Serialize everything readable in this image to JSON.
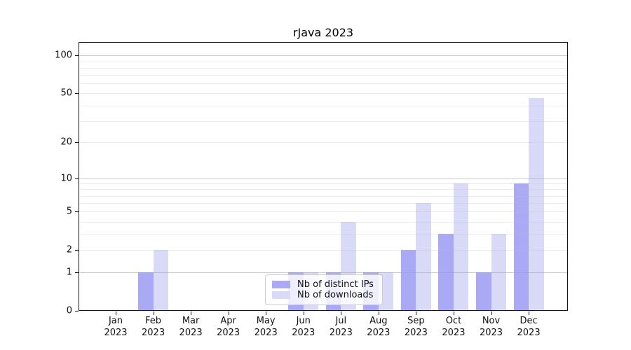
{
  "title": "rJava 2023",
  "legend": {
    "items": [
      {
        "label": "Nb of distinct IPs",
        "key": "distinct_ips"
      },
      {
        "label": "Nb of downloads",
        "key": "downloads"
      }
    ]
  },
  "x_axis": {
    "months": [
      "Jan",
      "Feb",
      "Mar",
      "Apr",
      "May",
      "Jun",
      "Jul",
      "Aug",
      "Sep",
      "Oct",
      "Nov",
      "Dec"
    ],
    "year": "2023"
  },
  "y_axis": {
    "tick_labels": [
      "0",
      "1",
      "2",
      "5",
      "10",
      "20",
      "50",
      "100"
    ],
    "tick_values": [
      0,
      1,
      2,
      5,
      10,
      20,
      50,
      100
    ],
    "scale": "log1p",
    "major_gridline_values": [
      1,
      10,
      100
    ],
    "minor_gridline_values": [
      2,
      3,
      4,
      5,
      6,
      7,
      8,
      9,
      20,
      30,
      40,
      50,
      60,
      70,
      80,
      90
    ]
  },
  "colors": {
    "distinct_ips": "#a9a9f6",
    "downloads": "#d9d9f8",
    "spine": "#111111",
    "grid_major": "rgba(158,158,166,0.55)",
    "grid_minor": "rgba(188,188,198,0.30)",
    "legend_border": "#cccccc",
    "legend_background": "rgba(255,255,255,0.8)",
    "text": "#111111"
  },
  "chart_data": {
    "type": "bar",
    "title": "rJava 2023",
    "categories": [
      "Jan 2023",
      "Feb 2023",
      "Mar 2023",
      "Apr 2023",
      "May 2023",
      "Jun 2023",
      "Jul 2023",
      "Aug 2023",
      "Sep 2023",
      "Oct 2023",
      "Nov 2023",
      "Dec 2023"
    ],
    "series": [
      {
        "name": "Nb of distinct IPs",
        "key": "distinct_ips",
        "values": [
          0,
          1,
          0,
          0,
          0,
          1,
          1,
          1,
          2,
          3,
          1,
          9
        ]
      },
      {
        "name": "Nb of downloads",
        "key": "downloads",
        "values": [
          0,
          2,
          0,
          0,
          0,
          1,
          4,
          1,
          6,
          9,
          3,
          46
        ]
      }
    ],
    "yscale": "log1p",
    "yticks": [
      0,
      1,
      2,
      5,
      10,
      20,
      50,
      100
    ],
    "ylim": [
      0,
      128
    ],
    "grid": "horizontal",
    "legend_position": "inside-bottom-center"
  }
}
